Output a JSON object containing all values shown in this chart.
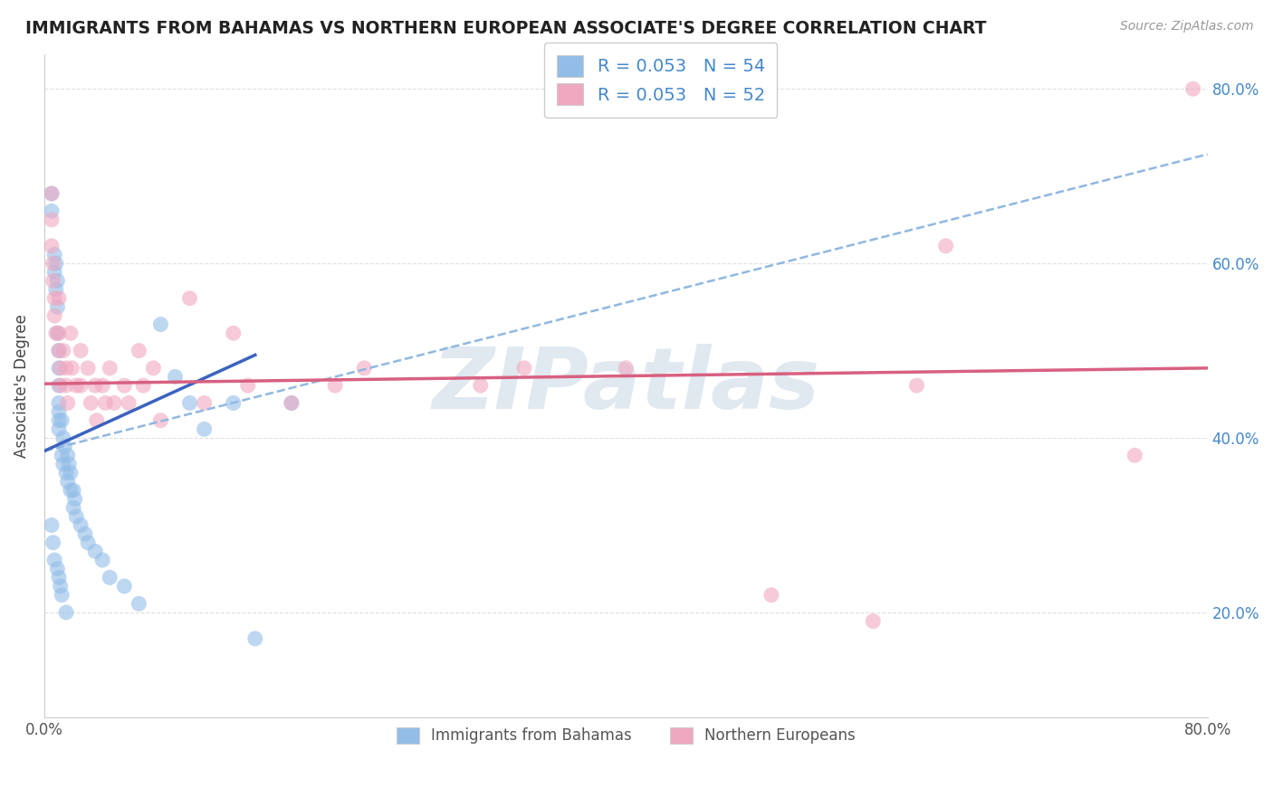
{
  "title": "IMMIGRANTS FROM BAHAMAS VS NORTHERN EUROPEAN ASSOCIATE'S DEGREE CORRELATION CHART",
  "source": "Source: ZipAtlas.com",
  "ylabel": "Associate's Degree",
  "right_yticks": [
    "20.0%",
    "40.0%",
    "60.0%",
    "80.0%"
  ],
  "right_ytick_vals": [
    0.2,
    0.4,
    0.6,
    0.8
  ],
  "xlim": [
    0.0,
    0.8
  ],
  "ylim": [
    0.08,
    0.84
  ],
  "legend_entries": [
    {
      "label": "R = 0.053   N = 54",
      "color": "#a8c8f0"
    },
    {
      "label": "R = 0.053   N = 52",
      "color": "#f0b0c8"
    }
  ],
  "watermark": "ZIPatlas",
  "blue_scatter_x": [
    0.005,
    0.005,
    0.007,
    0.007,
    0.008,
    0.008,
    0.009,
    0.009,
    0.009,
    0.01,
    0.01,
    0.01,
    0.01,
    0.01,
    0.01,
    0.01,
    0.012,
    0.012,
    0.013,
    0.013,
    0.014,
    0.015,
    0.016,
    0.016,
    0.017,
    0.018,
    0.018,
    0.02,
    0.02,
    0.021,
    0.022,
    0.025,
    0.028,
    0.03,
    0.035,
    0.04,
    0.045,
    0.055,
    0.065,
    0.08,
    0.09,
    0.1,
    0.11,
    0.13,
    0.145,
    0.17,
    0.005,
    0.006,
    0.007,
    0.009,
    0.01,
    0.011,
    0.012,
    0.015
  ],
  "blue_scatter_y": [
    0.68,
    0.66,
    0.61,
    0.59,
    0.6,
    0.57,
    0.58,
    0.55,
    0.52,
    0.5,
    0.48,
    0.46,
    0.44,
    0.43,
    0.42,
    0.41,
    0.42,
    0.38,
    0.4,
    0.37,
    0.39,
    0.36,
    0.38,
    0.35,
    0.37,
    0.34,
    0.36,
    0.34,
    0.32,
    0.33,
    0.31,
    0.3,
    0.29,
    0.28,
    0.27,
    0.26,
    0.24,
    0.23,
    0.21,
    0.53,
    0.47,
    0.44,
    0.41,
    0.44,
    0.17,
    0.44,
    0.3,
    0.28,
    0.26,
    0.25,
    0.24,
    0.23,
    0.22,
    0.2
  ],
  "pink_scatter_x": [
    0.005,
    0.005,
    0.005,
    0.006,
    0.006,
    0.007,
    0.007,
    0.008,
    0.01,
    0.01,
    0.01,
    0.011,
    0.011,
    0.013,
    0.015,
    0.015,
    0.016,
    0.018,
    0.019,
    0.022,
    0.025,
    0.025,
    0.03,
    0.032,
    0.035,
    0.036,
    0.04,
    0.042,
    0.045,
    0.048,
    0.055,
    0.058,
    0.065,
    0.068,
    0.075,
    0.08,
    0.1,
    0.11,
    0.13,
    0.14,
    0.17,
    0.2,
    0.22,
    0.3,
    0.33,
    0.4,
    0.5,
    0.57,
    0.6,
    0.62,
    0.75,
    0.79
  ],
  "pink_scatter_y": [
    0.68,
    0.65,
    0.62,
    0.6,
    0.58,
    0.56,
    0.54,
    0.52,
    0.56,
    0.52,
    0.5,
    0.48,
    0.46,
    0.5,
    0.48,
    0.46,
    0.44,
    0.52,
    0.48,
    0.46,
    0.5,
    0.46,
    0.48,
    0.44,
    0.46,
    0.42,
    0.46,
    0.44,
    0.48,
    0.44,
    0.46,
    0.44,
    0.5,
    0.46,
    0.48,
    0.42,
    0.56,
    0.44,
    0.52,
    0.46,
    0.44,
    0.46,
    0.48,
    0.46,
    0.48,
    0.48,
    0.22,
    0.19,
    0.46,
    0.62,
    0.38,
    0.8
  ],
  "blue_line_x": [
    0.0,
    0.145
  ],
  "blue_line_y": [
    0.385,
    0.495
  ],
  "pink_line_x": [
    0.0,
    0.8
  ],
  "pink_line_y": [
    0.462,
    0.48
  ],
  "dashed_line_x": [
    0.0,
    0.8
  ],
  "dashed_line_y": [
    0.385,
    0.725
  ],
  "title_color": "#222222",
  "blue_color": "#92bde8",
  "pink_color": "#f0a8c0",
  "blue_line_color": "#3a62c0",
  "pink_line_color": "#d86080",
  "dashed_line_color": "#90b8e0",
  "grid_color": "#d8d8d8",
  "right_axis_color": "#4488cc",
  "watermark_color": "#e0e8f0"
}
